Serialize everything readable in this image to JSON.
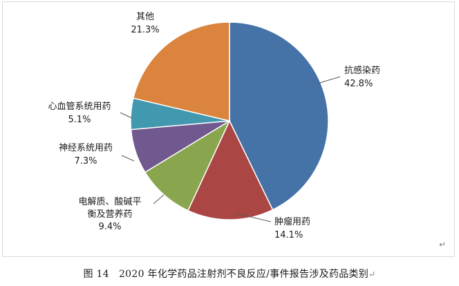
{
  "chart_data": {
    "type": "pie",
    "categories": [
      "抗感染药",
      "肿瘤用药",
      "电解质、酸碱平衡及营养药",
      "神经系统用药",
      "心血管系统用药",
      "其他"
    ],
    "label_lines": [
      [
        "抗感染药"
      ],
      [
        "肿瘤用药"
      ],
      [
        "电解质、酸碱平",
        "衡及营养药"
      ],
      [
        "神经系统用药"
      ],
      [
        "心血管系统用药"
      ],
      [
        "其他"
      ]
    ],
    "values": [
      42.8,
      14.1,
      9.4,
      7.3,
      5.1,
      21.3
    ],
    "value_labels": [
      "42.8%",
      "14.1%",
      "9.4%",
      "7.3%",
      "5.1%",
      "21.3%"
    ],
    "colors": [
      "#4572a7",
      "#aa4643",
      "#89a54e",
      "#71588f",
      "#4198af",
      "#db843d"
    ],
    "start_angle": "12 o'clock",
    "direction": "clockwise",
    "legend": "none"
  },
  "caption": {
    "figure_no": "图 14",
    "text": "2020 年化学药品注射剂不良反应/事件报告涉及药品类别"
  },
  "marks": {
    "return_symbol": "↵"
  }
}
